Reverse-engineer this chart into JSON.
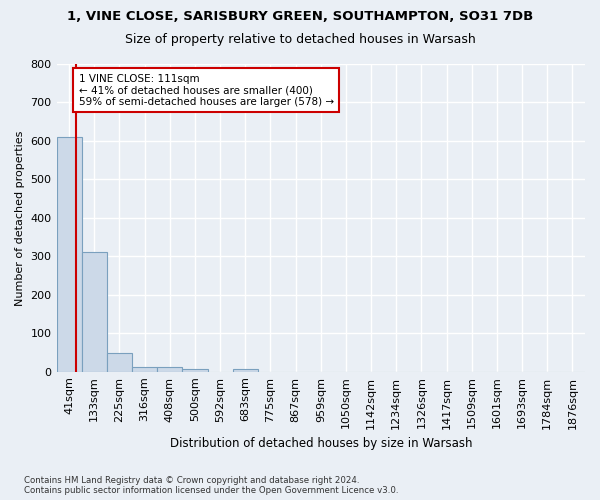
{
  "title1": "1, VINE CLOSE, SARISBURY GREEN, SOUTHAMPTON, SO31 7DB",
  "title2": "Size of property relative to detached houses in Warsash",
  "xlabel": "Distribution of detached houses by size in Warsash",
  "ylabel": "Number of detached properties",
  "footnote": "Contains HM Land Registry data © Crown copyright and database right 2024.\nContains public sector information licensed under the Open Government Licence v3.0.",
  "bin_labels": [
    "41sqm",
    "133sqm",
    "225sqm",
    "316sqm",
    "408sqm",
    "500sqm",
    "592sqm",
    "683sqm",
    "775sqm",
    "867sqm",
    "959sqm",
    "1050sqm",
    "1142sqm",
    "1234sqm",
    "1326sqm",
    "1417sqm",
    "1509sqm",
    "1601sqm",
    "1693sqm",
    "1784sqm",
    "1876sqm"
  ],
  "bar_values": [
    610,
    310,
    48,
    12,
    12,
    8,
    0,
    7,
    0,
    0,
    0,
    0,
    0,
    0,
    0,
    0,
    0,
    0,
    0,
    0,
    0
  ],
  "bar_color": "#ccd9e8",
  "bar_edgecolor": "#7aa0be",
  "property_label": "1 VINE CLOSE: 111sqm",
  "annotation_line1": "← 41% of detached houses are smaller (400)",
  "annotation_line2": "59% of semi-detached houses are larger (578) →",
  "vline_x_data": 0.26,
  "ylim": [
    0,
    800
  ],
  "yticks": [
    0,
    100,
    200,
    300,
    400,
    500,
    600,
    700,
    800
  ],
  "bg_color": "#eaeff5",
  "plot_bg_color": "#eaeff5",
  "grid_color": "#ffffff",
  "annotation_box_facecolor": "#ffffff",
  "annotation_box_edgecolor": "#cc0000",
  "vline_color": "#cc0000"
}
